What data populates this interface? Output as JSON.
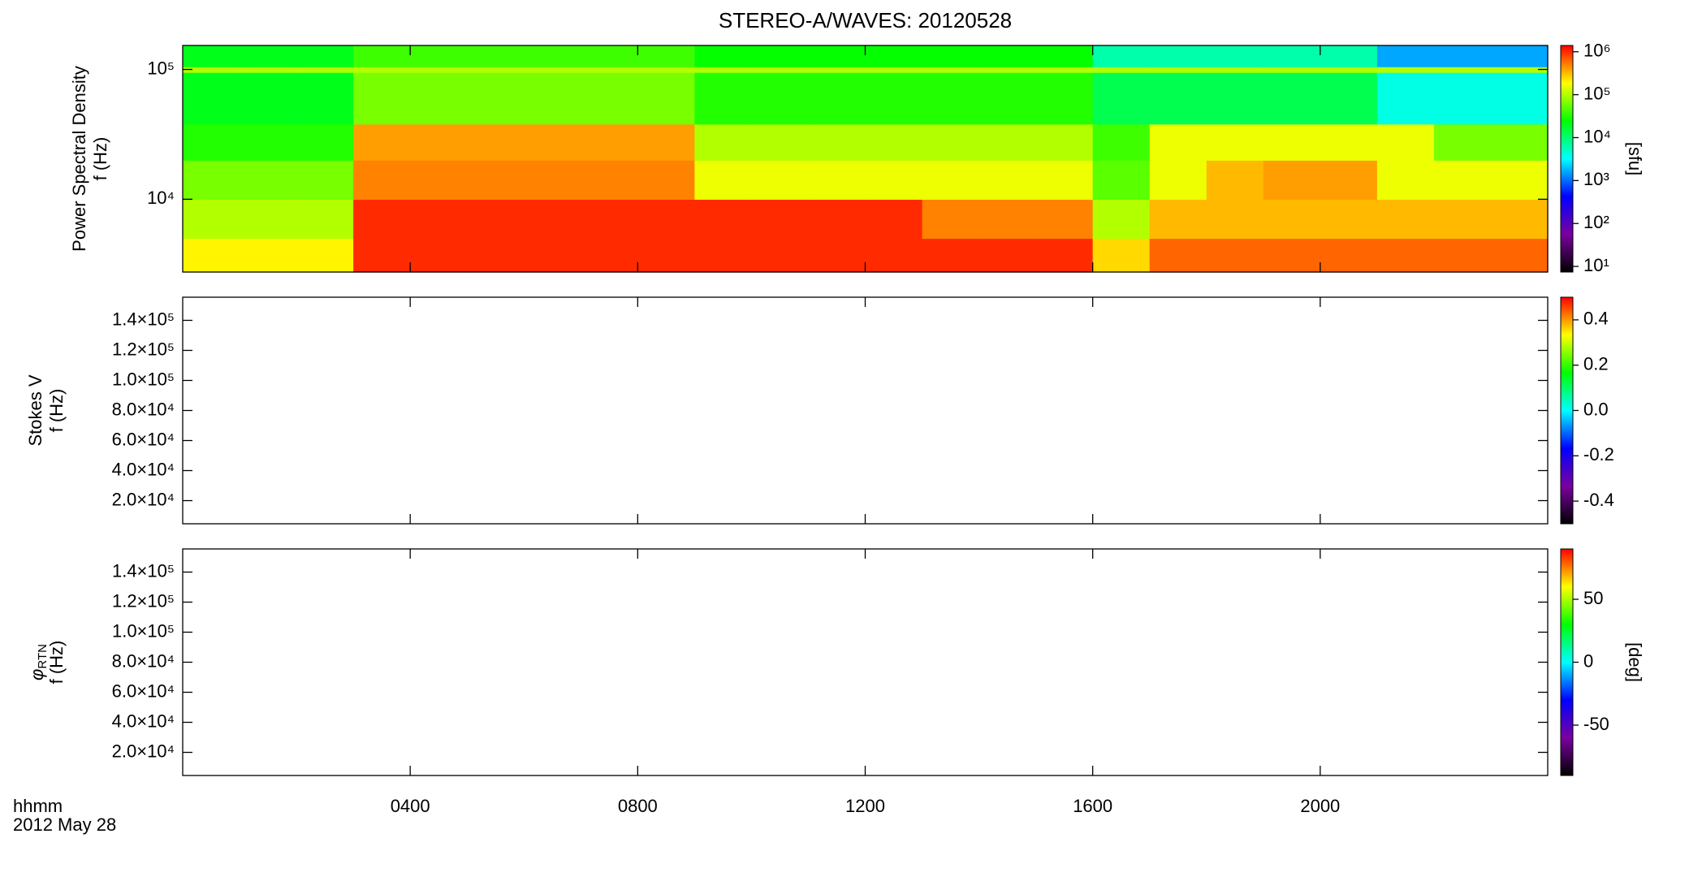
{
  "chart_data": [
    {
      "type": "heatmap",
      "title": "STEREO-A/WAVES: 20120528",
      "ylabel": [
        "Power Spectral Density",
        "f (Hz)"
      ],
      "log_y": true,
      "xlim": [
        0,
        24
      ],
      "xticks": [
        4,
        8,
        12,
        16,
        20
      ],
      "ylim": [
        2750,
        153000
      ],
      "yticks": [
        {
          "value": 10000,
          "label": "10⁴"
        },
        {
          "value": 100000,
          "label": "10⁵"
        }
      ],
      "time_bins": [
        0,
        1,
        2,
        3,
        4,
        5,
        6,
        7,
        8,
        9,
        10,
        11,
        12,
        13,
        14,
        15,
        16,
        17,
        18,
        19,
        20,
        21,
        22,
        23,
        24
      ],
      "freq_bins": [
        2750,
        5000,
        10000,
        20000,
        38000,
        95000,
        105000,
        153000
      ],
      "z": [
        [
          200000,
          200000,
          200000,
          1000000,
          1000000,
          1000000,
          1000000,
          1000000,
          1000000,
          1000000,
          1000000,
          1000000,
          1000000,
          1000000,
          1000000,
          1000000,
          250000,
          630000,
          630000,
          630000,
          630000,
          630000,
          630000,
          630000
        ],
        [
          100000,
          100000,
          100000,
          1000000,
          1000000,
          1000000,
          1000000,
          1000000,
          1000000,
          1000000,
          1000000,
          1000000,
          1000000,
          500000,
          500000,
          500000,
          100000,
          320000,
          320000,
          320000,
          320000,
          320000,
          320000,
          320000
        ],
        [
          63000,
          63000,
          63000,
          500000,
          500000,
          500000,
          500000,
          500000,
          500000,
          160000,
          160000,
          160000,
          160000,
          160000,
          160000,
          160000,
          50000,
          160000,
          320000,
          400000,
          400000,
          160000,
          160000,
          160000
        ],
        [
          32000,
          32000,
          32000,
          400000,
          400000,
          400000,
          400000,
          400000,
          400000,
          100000,
          100000,
          100000,
          100000,
          100000,
          100000,
          100000,
          40000,
          160000,
          160000,
          160000,
          160000,
          160000,
          63000,
          63000
        ],
        [
          20000,
          20000,
          20000,
          63000,
          63000,
          63000,
          63000,
          63000,
          63000,
          32000,
          32000,
          32000,
          32000,
          32000,
          32000,
          32000,
          13000,
          13000,
          13000,
          13000,
          13000,
          4000,
          4000,
          4000
        ],
        [
          100000,
          100000,
          100000,
          100000,
          100000,
          100000,
          100000,
          100000,
          100000,
          100000,
          100000,
          100000,
          100000,
          100000,
          100000,
          100000,
          100000,
          100000,
          100000,
          100000,
          100000,
          100000,
          100000,
          100000
        ],
        [
          20000,
          20000,
          20000,
          40000,
          40000,
          40000,
          40000,
          40000,
          40000,
          25000,
          25000,
          25000,
          25000,
          25000,
          25000,
          25000,
          6300,
          6300,
          6300,
          6300,
          6300,
          1600,
          1600,
          1600
        ]
      ],
      "colorbar": {
        "log": true,
        "lim": [
          7.4,
          1400000
        ],
        "ticks": [
          {
            "value": 10,
            "label": "10¹"
          },
          {
            "value": 100,
            "label": "10²"
          },
          {
            "value": 1000,
            "label": "10³"
          },
          {
            "value": 10000,
            "label": "10⁴"
          },
          {
            "value": 100000,
            "label": "10⁵"
          },
          {
            "value": 1000000,
            "label": "10⁶"
          }
        ],
        "label": "[sfu]",
        "colors": [
          "#000000",
          "#7a00a0",
          "#0000ff",
          "#00ffff",
          "#00ff00",
          "#ffff00",
          "#ff0000"
        ]
      }
    },
    {
      "type": "heatmap",
      "ylabel": [
        "Stokes V",
        "f (Hz)"
      ],
      "xlim": [
        0,
        24
      ],
      "xticks": [
        4,
        8,
        12,
        16,
        20
      ],
      "ylim": [
        4600,
        155400
      ],
      "yticks": [
        {
          "value": 20000,
          "label": "2.0×10⁴"
        },
        {
          "value": 40000,
          "label": "4.0×10⁴"
        },
        {
          "value": 60000,
          "label": "6.0×10⁴"
        },
        {
          "value": 80000,
          "label": "8.0×10⁴"
        },
        {
          "value": 100000,
          "label": "1.0×10⁵"
        },
        {
          "value": 120000,
          "label": "1.2×10⁵"
        },
        {
          "value": 140000,
          "label": "1.4×10⁵"
        }
      ],
      "colorbar": {
        "lim": [
          -0.5,
          0.5
        ],
        "ticks": [
          -0.4,
          -0.2,
          {
            "value": 0,
            "label": "0.0"
          },
          0.2,
          0.4
        ],
        "colors": [
          "#000000",
          "#7a00a0",
          "#0000ff",
          "#00ffff",
          "#00ff00",
          "#ffff00",
          "#ff0000"
        ]
      }
    },
    {
      "type": "heatmap",
      "ylabel": [
        "f (Hz)"
      ],
      "ylabel_symbol": "φ",
      "ylabel_subscript": "RTN",
      "xlim": [
        0,
        24
      ],
      "xticks": [
        {
          "value": 4,
          "label": "0400"
        },
        {
          "value": 8,
          "label": "0800"
        },
        {
          "value": 12,
          "label": "1200"
        },
        {
          "value": 16,
          "label": "1600"
        },
        {
          "value": 20,
          "label": "2000"
        }
      ],
      "x_label": [
        "hhmm",
        "2012 May 28"
      ],
      "ylim": [
        4600,
        155400
      ],
      "yticks": [
        {
          "value": 20000,
          "label": "2.0×10⁴"
        },
        {
          "value": 40000,
          "label": "4.0×10⁴"
        },
        {
          "value": 60000,
          "label": "6.0×10⁴"
        },
        {
          "value": 80000,
          "label": "8.0×10⁴"
        },
        {
          "value": 100000,
          "label": "1.0×10⁵"
        },
        {
          "value": 120000,
          "label": "1.2×10⁵"
        },
        {
          "value": 140000,
          "label": "1.4×10⁵"
        }
      ],
      "colorbar": {
        "lim": [
          -90,
          90
        ],
        "ticks": [
          -50,
          0,
          50
        ],
        "label": "[deg]",
        "colors": [
          "#000000",
          "#7a00a0",
          "#0000ff",
          "#00ffff",
          "#00ff00",
          "#ffff00",
          "#ff0000"
        ]
      }
    }
  ]
}
